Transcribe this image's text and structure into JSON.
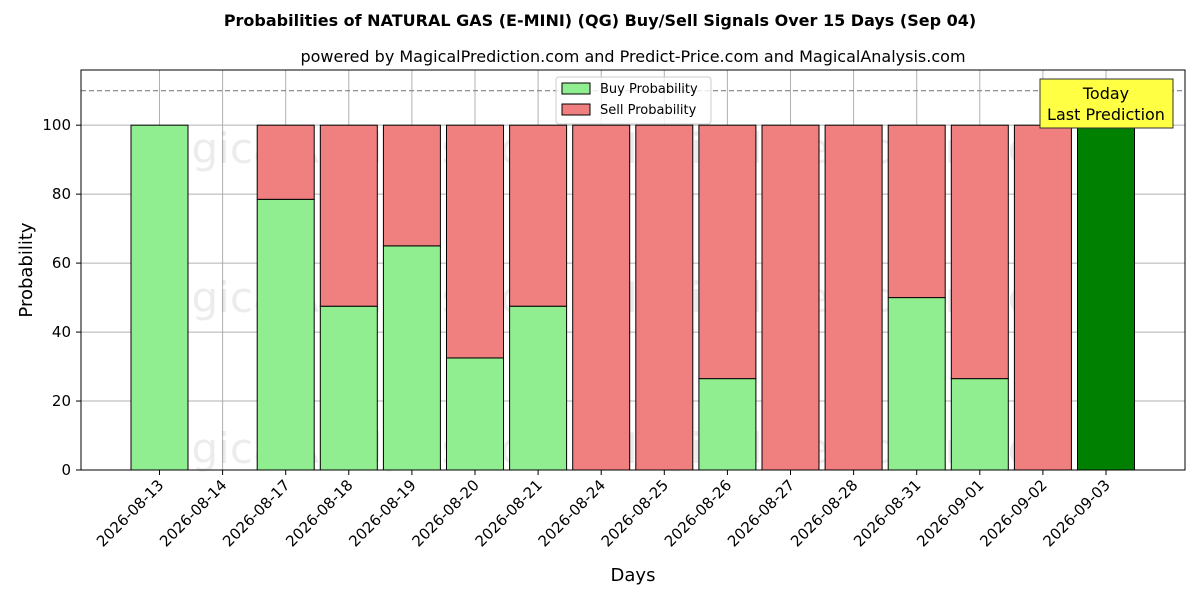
{
  "chart_data": {
    "type": "bar",
    "title": "Probabilities of NATURAL GAS (E-MINI) (QG) Buy/Sell Signals Over 15 Days (Sep 04)",
    "subtitle": "powered by MagicalPrediction.com and Predict-Price.com and MagicalAnalysis.com",
    "xlabel": "Days",
    "ylabel": "Probability",
    "ylim": [
      0,
      116
    ],
    "yticks": [
      0,
      20,
      40,
      60,
      80,
      100
    ],
    "reference_line": 110,
    "grid": true,
    "legend_position": "top-center",
    "categories": [
      "2026-08-13",
      "2026-08-14",
      "2026-08-17",
      "2026-08-18",
      "2026-08-19",
      "2026-08-20",
      "2026-08-21",
      "2026-08-24",
      "2026-08-25",
      "2026-08-26",
      "2026-08-27",
      "2026-08-28",
      "2026-08-31",
      "2026-09-01",
      "2026-09-02",
      "2026-09-03"
    ],
    "series": [
      {
        "name": "Buy Probability",
        "color": "#90ee90",
        "values": [
          100,
          0,
          78.5,
          47.5,
          65,
          32.5,
          47.5,
          0,
          0,
          26.5,
          0,
          0,
          50,
          26.5,
          0,
          100
        ]
      },
      {
        "name": "Sell Probability",
        "color": "#f08080",
        "values": [
          0,
          0,
          21.5,
          52.5,
          35,
          67.5,
          52.5,
          100,
          100,
          73.5,
          100,
          100,
          50,
          73.5,
          100,
          0
        ]
      }
    ],
    "today_index": 15,
    "today_color": "#008000",
    "annotation": {
      "line1": "Today",
      "line2": "Last Prediction",
      "background": "#ffff44"
    },
    "watermarks": [
      "MagicalAnalysis.com",
      "MagicalPrediction.com"
    ]
  }
}
